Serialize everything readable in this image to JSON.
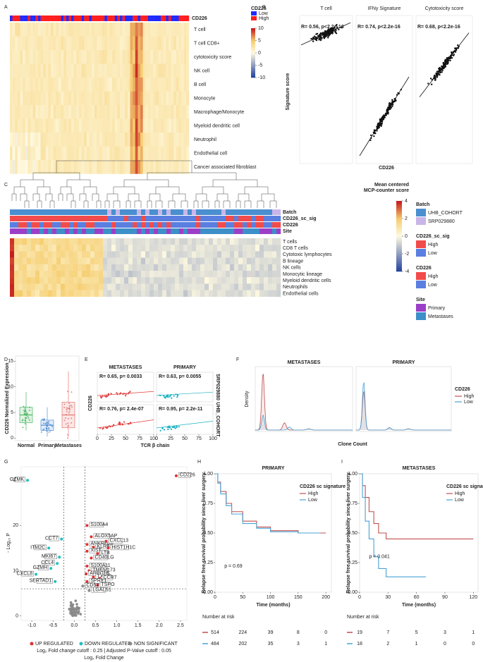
{
  "panel_labels": [
    "A",
    "B",
    "C",
    "D",
    "E",
    "F",
    "G",
    "H",
    "I"
  ],
  "a": {
    "top_row": "CD226",
    "rows": [
      "T cell",
      "T cell CD8+",
      "cytotoxicity score",
      "NK cell",
      "B cell",
      "Monocyte",
      "Macrophage/Monocyte",
      "Myeloid dendritic cell",
      "Neutrophil",
      "Endothelial cell",
      "Cancer associated fibroblast"
    ],
    "legend_title": "CD226",
    "legend": [
      {
        "name": "Low",
        "color": "#1f2bff"
      },
      {
        "name": "High",
        "color": "#ff1f1f"
      }
    ],
    "scale_ticks": [
      10,
      5,
      0,
      -5,
      -10
    ]
  },
  "b": {
    "panels": [
      {
        "title": "T cell",
        "stat": "R= 0.56, p<2.2e-16"
      },
      {
        "title": "IFNy Signature",
        "stat": "R= 0.74, p<2.2e-16"
      },
      {
        "title": "Cytotoxicity score",
        "stat": "R= 0.68, p<2.2e-16"
      }
    ],
    "ylabel": "Signature score",
    "xlabel": "CD226"
  },
  "c": {
    "annot_rows": [
      "Batch",
      "CD226_sc_sig",
      "CD226",
      "Site"
    ],
    "rows": [
      "T cells",
      "CD8 T cells",
      "Cytotoxic lymphocytes",
      "B lineage",
      "NK cells",
      "Monocytic lineage",
      "Myeloid dendritic cells",
      "Neutrophils",
      "Endothelial cells"
    ],
    "legend_title": [
      "Mean centered",
      "MCP-counter score"
    ],
    "scale_ticks": [
      4,
      2,
      0,
      -2,
      -4
    ],
    "legends": [
      {
        "title": "Batch",
        "items": [
          {
            "name": "UHB_COHORT",
            "color": "#4a8fcf"
          },
          {
            "name": "SRP029880",
            "color": "#c9b6e8"
          }
        ]
      },
      {
        "title": "CD226_sc_sig",
        "items": [
          {
            "name": "High",
            "color": "#f24b4b"
          },
          {
            "name": "Low",
            "color": "#5a7fe0"
          }
        ]
      },
      {
        "title": "CD226",
        "items": [
          {
            "name": "High",
            "color": "#f24b4b"
          },
          {
            "name": "Low",
            "color": "#5a7fe0"
          }
        ]
      },
      {
        "title": "Site",
        "items": [
          {
            "name": "Primary",
            "color": "#9b3fc8"
          },
          {
            "name": "Metastases",
            "color": "#3c8fc8"
          }
        ]
      }
    ]
  },
  "d": {
    "type": "box",
    "categories": [
      "Normal",
      "Primary",
      "Metastases"
    ],
    "colors": [
      "#2fae4a",
      "#3d7fd0",
      "#e0605a"
    ],
    "ylabel": "CD226 Normalized Expression",
    "ylim": [
      -0.5,
      16
    ],
    "yticks": [
      0,
      5,
      10,
      15
    ],
    "boxes": [
      {
        "low": 1.5,
        "q1": 3,
        "median": 4.5,
        "q3": 6,
        "high": 9
      },
      {
        "low": 0.3,
        "q1": 1.5,
        "median": 2.5,
        "q3": 3.5,
        "high": 6
      },
      {
        "low": 0.2,
        "q1": 2,
        "median": 4.5,
        "q3": 7,
        "high": 13
      }
    ]
  },
  "e": {
    "columns": [
      "METASTASES",
      "PRIMARY"
    ],
    "rows": [
      "SRP029880",
      "UHB_COHORT"
    ],
    "colors": [
      "#e03c3c",
      "#1ab2c0"
    ],
    "stats": [
      "R= 0.65, p= 0.0033",
      "R= 0.63, p= 0.0055",
      "R= 0.76, p= 2.4e-07",
      "R= 0.95, p= 2.2e-11"
    ],
    "xlabel": "TCR β chain",
    "ylabel": "CD226",
    "xlim": [
      0,
      100
    ],
    "xticks": [
      0,
      25,
      50,
      75,
      100
    ]
  },
  "f": {
    "titles": [
      "METASTASES",
      "PRIMARY"
    ],
    "ylabel": "Density",
    "xlabel": "Clone Count",
    "legend_title": "CD226",
    "legend": [
      {
        "name": "High",
        "color": "#c0504d"
      },
      {
        "name": "Low",
        "color": "#4aa3d6"
      }
    ]
  },
  "g": {
    "type": "scatter",
    "ylabel": "- Log₁₀ P",
    "xlabel": "Log₂ Fold Change",
    "xlim": [
      -1.25,
      2.65
    ],
    "ylim": [
      -1,
      33
    ],
    "xticks": [
      {
        "value": -1,
        "label": "-1.0"
      },
      {
        "value": -0.5,
        "label": "-0.5"
      },
      {
        "value": 0,
        "label": "0.0"
      },
      {
        "value": 0.5,
        "label": "0.5"
      },
      {
        "value": 1,
        "label": "1.0"
      },
      {
        "value": 1.5,
        "label": "1.5"
      },
      {
        "value": 2,
        "label": "2.0"
      },
      {
        "value": 2.5,
        "label": "2.5"
      }
    ],
    "yticks": [
      0,
      10,
      20,
      30
    ],
    "fc_cutoff": [
      -0.25,
      0.25
    ],
    "p_cutoff": 6,
    "genes": [
      {
        "name": "CD226",
        "fc": 2.4,
        "p": 31
      },
      {
        "name": "GZMK",
        "fc": -1.1,
        "p": 30
      },
      {
        "name": "S100A4",
        "fc": 0.3,
        "p": 20
      },
      {
        "name": "CCT7",
        "fc": -0.3,
        "p": 17
      },
      {
        "name": "ALOX5AP",
        "fc": 0.4,
        "p": 17.5
      },
      {
        "name": "ANKRD28",
        "fc": 0.3,
        "p": 15.8
      },
      {
        "name": "CXCL13",
        "fc": 0.75,
        "p": 16.5
      },
      {
        "name": "ITM2C",
        "fc": -0.6,
        "p": 15
      },
      {
        "name": "KLRB1",
        "fc": 0.45,
        "p": 15.2
      },
      {
        "name": "HIST1H1C",
        "fc": 0.8,
        "p": 15
      },
      {
        "name": "XIST",
        "fc": 0.3,
        "p": 14.3
      },
      {
        "name": "LTB",
        "fc": 0.55,
        "p": 13.8
      },
      {
        "name": "MKI67",
        "fc": -0.35,
        "p": 13
      },
      {
        "name": "CD40LG",
        "fc": 0.4,
        "p": 12.8
      },
      {
        "name": "CCL4",
        "fc": -0.4,
        "p": 11.6
      },
      {
        "name": "S100A11",
        "fc": 0.3,
        "p": 11
      },
      {
        "name": "GZMH",
        "fc": -0.55,
        "p": 10.5
      },
      {
        "name": "TMEM173",
        "fc": 0.35,
        "p": 10
      },
      {
        "name": "CXCL8",
        "fc": -0.9,
        "p": 9.2
      },
      {
        "name": "ARPC1B",
        "fc": 0.28,
        "p": 9.3
      },
      {
        "name": "TXNIP",
        "fc": 0.45,
        "p": 8.6
      },
      {
        "name": "CCR7",
        "fc": 0.6,
        "p": 8.3
      },
      {
        "name": "SERTAD1",
        "fc": -0.45,
        "p": 7.6
      },
      {
        "name": "SPRY1",
        "fc": 0.3,
        "p": 7.6
      },
      {
        "name": "TSPO",
        "fc": 0.55,
        "p": 6.8
      },
      {
        "name": "CD52",
        "fc": 0.2,
        "p": 6.6
      },
      {
        "name": "LGALS1",
        "fc": 0.35,
        "p": 5.6
      }
    ],
    "legend": [
      {
        "name": "UP REGULATED",
        "color": "#e03030"
      },
      {
        "name": "DOWN REGULATED",
        "color": "#20c0c0"
      },
      {
        "name": "NON SIGNIFICANT",
        "color": "#8a8a8a"
      }
    ],
    "caption": "Log₂ Fold change cutoff : 0.25 | Adjusted P-Value cutoff : 0.05"
  },
  "km": [
    {
      "title": "PRIMARY",
      "pvalue": "p = 0.69",
      "xlim": [
        0,
        210
      ],
      "xticks": [
        0,
        50,
        100,
        150,
        200
      ],
      "series": [
        {
          "name": "High",
          "color": "#c0504d",
          "x": [
            0,
            5,
            10,
            20,
            30,
            50,
            75,
            100,
            150,
            200
          ],
          "y": [
            1,
            0.93,
            0.85,
            0.75,
            0.68,
            0.6,
            0.55,
            0.52,
            0.5,
            0.5
          ]
        },
        {
          "name": "Low",
          "color": "#4aa3d6",
          "x": [
            0,
            5,
            10,
            20,
            30,
            50,
            75,
            100,
            150,
            190
          ],
          "y": [
            1,
            0.92,
            0.83,
            0.73,
            0.66,
            0.58,
            0.54,
            0.51,
            0.5,
            0.5
          ]
        }
      ],
      "risk": [
        [
          514,
          224,
          39,
          8,
          0
        ],
        [
          484,
          202,
          35,
          3,
          1
        ]
      ]
    },
    {
      "title": "METASTASES",
      "pvalue": "p = 0.041",
      "xlim": [
        0,
        125
      ],
      "xticks": [
        0,
        30,
        60,
        90,
        120
      ],
      "series": [
        {
          "name": "High",
          "color": "#c0504d",
          "x": [
            0,
            3,
            6,
            10,
            15,
            20,
            28,
            60,
            120
          ],
          "y": [
            1,
            0.9,
            0.8,
            0.68,
            0.58,
            0.5,
            0.45,
            0.45,
            0.45
          ]
        },
        {
          "name": "Low",
          "color": "#4aa3d6",
          "x": [
            0,
            3,
            6,
            10,
            15,
            20,
            28,
            70
          ],
          "y": [
            1,
            0.8,
            0.6,
            0.45,
            0.3,
            0.2,
            0.13,
            0.13
          ]
        }
      ],
      "risk": [
        [
          19,
          7,
          5,
          3,
          1
        ],
        [
          18,
          2,
          1,
          0,
          0
        ]
      ]
    }
  ],
  "km_common": {
    "legend_title": "CD226 sc signature",
    "ylabel": "Relapse free survival probability since liver surgery",
    "xlabel": "Time (months)",
    "ylim": [
      0,
      1
    ],
    "yticks": [
      {
        "value": 0,
        "label": "0.00"
      },
      {
        "value": 0.25,
        "label": "0.25"
      },
      {
        "value": 0.5,
        "label": "0.50"
      },
      {
        "value": 0.75,
        "label": "0.75"
      },
      {
        "value": 1,
        "label": "1.00"
      }
    ],
    "risk_title": "Number at risk"
  }
}
